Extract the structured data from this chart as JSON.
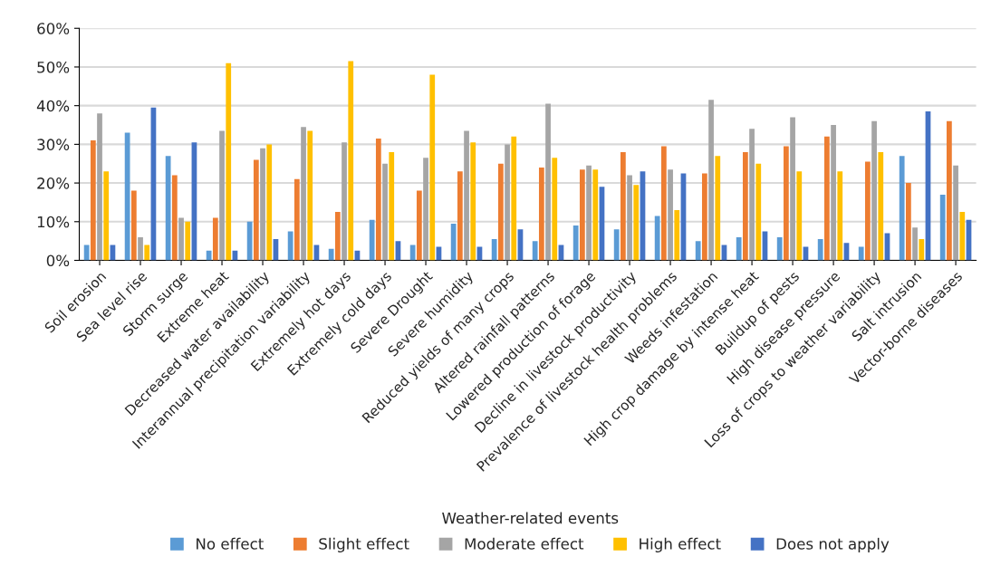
{
  "chart_data": {
    "type": "bar",
    "xlabel": "Weather-related events",
    "categories": [
      "Soil erosion",
      "Sea level rise",
      "Storm surge",
      "Extreme heat",
      "Decreased water availability",
      "Interannual precipitation variability",
      "Extremely hot days",
      "Extremely cold days",
      "Severe Drought",
      "Severe humidity",
      "Reduced yields of many crops",
      "Altered rainfall patterns",
      "Lowered production of forage",
      "Decline in livestock productivity",
      "Prevalence of livestock health problems",
      "Weeds infestation",
      "High crop damage by intense heat",
      "Buildup of pests",
      "High disease pressure",
      "Loss of crops to weather variability",
      "Salt intrusion",
      "Vector-borne diseases"
    ],
    "series": [
      {
        "name": "No effect",
        "color": "#5b9bd5",
        "values": [
          4,
          33,
          27,
          2.5,
          10,
          7.5,
          3,
          10.5,
          4,
          9.5,
          5.5,
          5,
          9,
          8,
          11.5,
          5,
          6,
          6,
          5.5,
          3.5,
          27,
          17
        ]
      },
      {
        "name": "Slight effect",
        "color": "#ed7d31",
        "values": [
          31,
          18,
          22,
          11,
          26,
          21,
          12.5,
          31.5,
          18,
          23,
          25,
          24,
          23.5,
          28,
          29.5,
          22.5,
          28,
          29.5,
          32,
          25.5,
          20,
          36
        ]
      },
      {
        "name": "Moderate effect",
        "color": "#a5a5a5",
        "values": [
          38,
          6,
          11,
          33.5,
          29,
          34.5,
          30.5,
          25,
          26.5,
          33.5,
          30,
          40.5,
          24.5,
          22,
          23.5,
          41.5,
          34,
          37,
          35,
          36,
          8.5,
          24.5
        ]
      },
      {
        "name": "High effect",
        "color": "#ffc000",
        "values": [
          23,
          4,
          10,
          51,
          30,
          33.5,
          51.5,
          28,
          48,
          30.5,
          32,
          26.5,
          23.5,
          19.5,
          13,
          27,
          25,
          23,
          23,
          28,
          5.5,
          12.5
        ]
      },
      {
        "name": "Does not apply",
        "color": "#4472c4",
        "values": [
          4,
          39.5,
          30.5,
          2.5,
          5.5,
          4,
          2.5,
          5,
          3.5,
          3.5,
          8,
          4,
          19,
          23,
          22.5,
          4,
          7.5,
          3.5,
          4.5,
          7,
          38.5,
          10.5
        ]
      }
    ],
    "ylim": [
      0,
      60
    ],
    "yticks": [
      {
        "value": 0,
        "label": "0%"
      },
      {
        "value": 10,
        "label": "10%"
      },
      {
        "value": 20,
        "label": "20%"
      },
      {
        "value": 30,
        "label": "30%"
      },
      {
        "value": 40,
        "label": "40%"
      },
      {
        "value": 50,
        "label": "50%"
      },
      {
        "value": 60,
        "label": "60%"
      }
    ],
    "grid": "y",
    "legend": "bottom"
  }
}
